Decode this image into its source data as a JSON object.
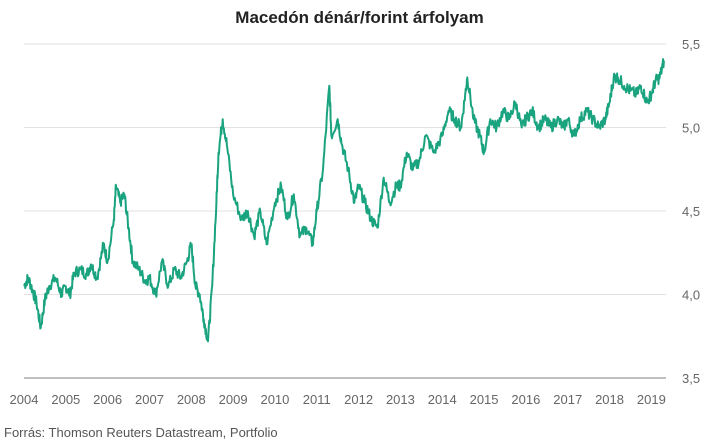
{
  "chart_data": {
    "type": "line",
    "title": "Macedón dénár/forint árfolyam",
    "xlabel": "",
    "ylabel": "",
    "source": "Forrás: Thomson Reuters Datastream, Portfolio",
    "xlim": [
      2004.0,
      2019.35
    ],
    "ylim": [
      3.5,
      5.5
    ],
    "x_ticks": [
      "2004",
      "2005",
      "2006",
      "2007",
      "2008",
      "2009",
      "2010",
      "2011",
      "2012",
      "2013",
      "2014",
      "2015",
      "2016",
      "2017",
      "2018",
      "2019"
    ],
    "y_ticks": [
      "3,5",
      "4,0",
      "4,5",
      "5,0",
      "5,5"
    ],
    "grid": "horizontal",
    "color": "#1aa37f",
    "series": [
      {
        "x": [
          2004.0,
          2004.1,
          2004.2,
          2004.3,
          2004.4,
          2004.5,
          2004.6,
          2004.75,
          2004.9,
          2005.0,
          2005.1,
          2005.2,
          2005.35,
          2005.5,
          2005.6,
          2005.75,
          2005.9,
          2006.0,
          2006.15,
          2006.2,
          2006.3,
          2006.4,
          2006.5,
          2006.6,
          2006.75,
          2006.9,
          2007.0,
          2007.15,
          2007.3,
          2007.45,
          2007.6,
          2007.75,
          2007.9,
          2008.0,
          2008.1,
          2008.2,
          2008.3,
          2008.4,
          2008.5,
          2008.6,
          2008.65,
          2008.75,
          2008.85,
          2009.0,
          2009.2,
          2009.35,
          2009.5,
          2009.65,
          2009.8,
          2010.0,
          2010.15,
          2010.3,
          2010.45,
          2010.6,
          2010.75,
          2010.9,
          2011.0,
          2011.15,
          2011.3,
          2011.35,
          2011.5,
          2011.6,
          2011.75,
          2011.9,
          2012.0,
          2012.15,
          2012.3,
          2012.45,
          2012.6,
          2012.75,
          2012.9,
          2013.0,
          2013.15,
          2013.3,
          2013.45,
          2013.6,
          2013.8,
          2014.0,
          2014.15,
          2014.3,
          2014.45,
          2014.55,
          2014.6,
          2014.75,
          2014.9,
          2015.0,
          2015.15,
          2015.3,
          2015.45,
          2015.6,
          2015.75,
          2015.9,
          2016.0,
          2016.15,
          2016.3,
          2016.45,
          2016.6,
          2016.75,
          2016.9,
          2017.0,
          2017.15,
          2017.3,
          2017.45,
          2017.6,
          2017.75,
          2017.9,
          2018.0,
          2018.1,
          2018.2,
          2018.35,
          2018.5,
          2018.65,
          2018.75,
          2018.9,
          2019.0,
          2019.1,
          2019.2,
          2019.3
        ],
        "values": [
          4.05,
          4.1,
          4.03,
          3.95,
          3.8,
          3.97,
          4.05,
          4.1,
          4.0,
          4.05,
          4.0,
          4.13,
          4.15,
          4.12,
          4.18,
          4.1,
          4.3,
          4.2,
          4.45,
          4.65,
          4.55,
          4.6,
          4.4,
          4.2,
          4.15,
          4.08,
          4.1,
          4.0,
          4.2,
          4.05,
          4.15,
          4.1,
          4.2,
          4.3,
          4.05,
          4.0,
          3.85,
          3.72,
          4.05,
          4.55,
          4.85,
          5.05,
          4.9,
          4.6,
          4.45,
          4.5,
          4.35,
          4.5,
          4.3,
          4.55,
          4.65,
          4.45,
          4.6,
          4.35,
          4.4,
          4.3,
          4.5,
          4.75,
          5.25,
          4.95,
          5.05,
          4.9,
          4.75,
          4.55,
          4.65,
          4.55,
          4.45,
          4.4,
          4.7,
          4.55,
          4.65,
          4.65,
          4.85,
          4.75,
          4.8,
          4.95,
          4.85,
          4.95,
          5.1,
          5.05,
          5.0,
          5.2,
          5.3,
          5.05,
          4.95,
          4.85,
          5.05,
          5.0,
          5.1,
          5.05,
          5.15,
          5.0,
          5.05,
          5.1,
          5.0,
          5.05,
          5.0,
          5.05,
          5.0,
          5.05,
          4.95,
          5.05,
          5.1,
          5.05,
          5.0,
          5.05,
          5.15,
          5.3,
          5.3,
          5.25,
          5.22,
          5.2,
          5.25,
          5.15,
          5.2,
          5.28,
          5.3,
          5.4
        ]
      }
    ]
  }
}
